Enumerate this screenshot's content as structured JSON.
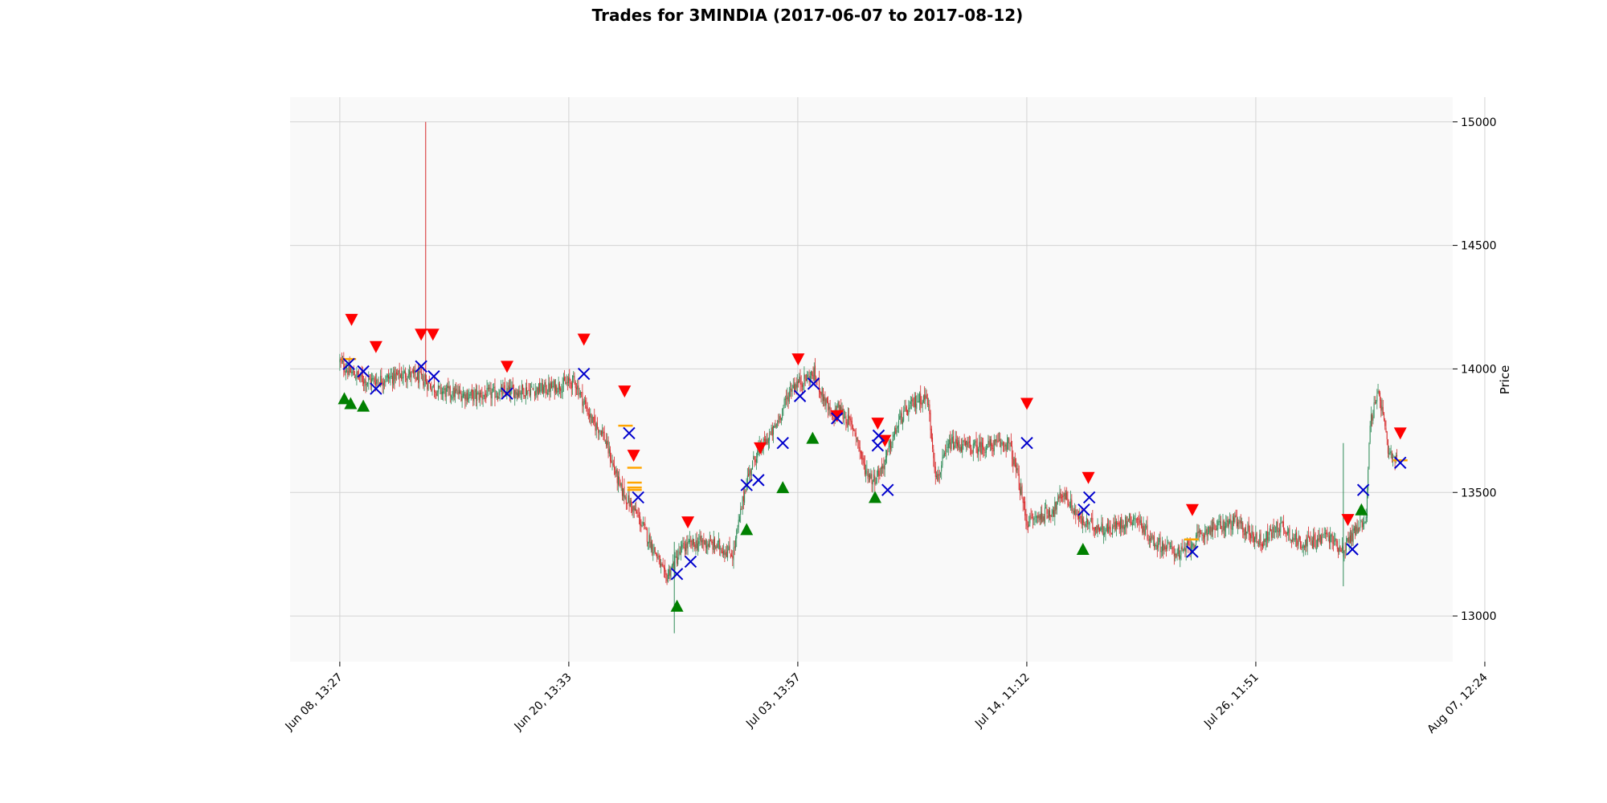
{
  "chart_data": {
    "type": "candlestick",
    "title": "Trades for 3MINDIA (2017-06-07 to 2017-08-12)",
    "xlabel": "",
    "ylabel": "Price",
    "ylim": [
      12815,
      15100
    ],
    "y_ticks": [
      13000,
      13500,
      14000,
      14500,
      15000
    ],
    "x_ticks": [
      "Jun 08, 13:27",
      "Jun 20, 13:33",
      "Jul 03, 13:57",
      "Jul 14, 11:12",
      "Jul 26, 11:51",
      "Aug 07, 12:24"
    ],
    "grid": true,
    "colors": {
      "up": "#2e8b57",
      "down": "#d62728",
      "buy": "#008000",
      "sell": "#ff0000",
      "exit": "#0000cd",
      "level": "#ffa500",
      "grid": "#d3d3d3",
      "panel": "#f9f9f9"
    },
    "price_path": [
      [
        0.0,
        14030
      ],
      [
        1.0,
        13990
      ],
      [
        3.0,
        13950
      ],
      [
        5.0,
        13960
      ],
      [
        7.5,
        13980
      ],
      [
        9.0,
        13960
      ],
      [
        11.0,
        13910
      ],
      [
        15.0,
        13890
      ],
      [
        19.0,
        13910
      ],
      [
        23.0,
        13920
      ],
      [
        26.0,
        13950
      ],
      [
        28.0,
        13780
      ],
      [
        29.0,
        13750
      ],
      [
        31.0,
        13520
      ],
      [
        33.0,
        13400
      ],
      [
        35.0,
        13250
      ],
      [
        36.0,
        13150
      ],
      [
        38.0,
        13280
      ],
      [
        40.0,
        13300
      ],
      [
        42.0,
        13280
      ],
      [
        43.5,
        13250
      ],
      [
        45.0,
        13550
      ],
      [
        46.0,
        13650
      ],
      [
        48.0,
        13750
      ],
      [
        50.0,
        13930
      ],
      [
        52.5,
        13980
      ],
      [
        54.5,
        13790
      ],
      [
        55.0,
        13850
      ],
      [
        57.0,
        13750
      ],
      [
        58.0,
        13600
      ],
      [
        59.0,
        13550
      ],
      [
        60.0,
        13600
      ],
      [
        62.0,
        13800
      ],
      [
        64.0,
        13880
      ],
      [
        65.0,
        13880
      ],
      [
        66.0,
        13550
      ],
      [
        67.5,
        13700
      ],
      [
        70.0,
        13680
      ],
      [
        74.0,
        13700
      ],
      [
        75.0,
        13560
      ],
      [
        76.0,
        13380
      ],
      [
        79.0,
        13430
      ],
      [
        80.0,
        13500
      ],
      [
        82.0,
        13380
      ],
      [
        85.0,
        13350
      ],
      [
        88.0,
        13400
      ],
      [
        90.0,
        13300
      ],
      [
        92.0,
        13270
      ],
      [
        93.0,
        13250
      ],
      [
        96.0,
        13350
      ],
      [
        99.0,
        13380
      ],
      [
        102.0,
        13300
      ],
      [
        104.0,
        13370
      ],
      [
        106.0,
        13300
      ],
      [
        108.0,
        13300
      ],
      [
        109.0,
        13330
      ],
      [
        111.0,
        13270
      ],
      [
        112.0,
        13330
      ],
      [
        113.5,
        13400
      ],
      [
        114.0,
        13800
      ],
      [
        115.0,
        13900
      ],
      [
        116.0,
        13650
      ],
      [
        117.0,
        13620
      ]
    ],
    "spikes": [
      {
        "x": 9.5,
        "high": 15000,
        "low": 13950
      },
      {
        "x": 37.0,
        "high": 13300,
        "low": 12930
      },
      {
        "x": 111.0,
        "high": 13700,
        "low": 13120
      }
    ],
    "trade_markers": {
      "buy": [
        [
          0.5,
          13880
        ],
        [
          1.2,
          13860
        ],
        [
          2.6,
          13850
        ],
        [
          37.3,
          13040
        ],
        [
          45.0,
          13350
        ],
        [
          49.0,
          13520
        ],
        [
          52.3,
          13720
        ],
        [
          59.2,
          13480
        ],
        [
          82.2,
          13270
        ],
        [
          113.0,
          13430
        ]
      ],
      "sell": [
        [
          1.3,
          14200
        ],
        [
          4.0,
          14090
        ],
        [
          9.0,
          14140
        ],
        [
          10.3,
          14140
        ],
        [
          18.5,
          14010
        ],
        [
          27.0,
          14120
        ],
        [
          31.5,
          13910
        ],
        [
          32.5,
          13650
        ],
        [
          38.5,
          13380
        ],
        [
          46.5,
          13680
        ],
        [
          50.7,
          14040
        ],
        [
          55.0,
          13810
        ],
        [
          59.5,
          13780
        ],
        [
          60.3,
          13710
        ],
        [
          76.0,
          13860
        ],
        [
          82.8,
          13560
        ],
        [
          94.3,
          13430
        ],
        [
          111.5,
          13390
        ],
        [
          117.3,
          13740
        ]
      ],
      "exit": [
        [
          1.0,
          14020
        ],
        [
          2.6,
          13990
        ],
        [
          4.0,
          13920
        ],
        [
          9.0,
          14010
        ],
        [
          10.4,
          13970
        ],
        [
          18.5,
          13900
        ],
        [
          27.0,
          13980
        ],
        [
          32.0,
          13740
        ],
        [
          33.0,
          13480
        ],
        [
          37.3,
          13170
        ],
        [
          38.8,
          13220
        ],
        [
          45.0,
          13530
        ],
        [
          46.3,
          13550
        ],
        [
          49.0,
          13700
        ],
        [
          50.9,
          13890
        ],
        [
          52.4,
          13940
        ],
        [
          55.0,
          13800
        ],
        [
          59.5,
          13690
        ],
        [
          59.6,
          13730
        ],
        [
          60.6,
          13510
        ],
        [
          76.0,
          13700
        ],
        [
          82.3,
          13430
        ],
        [
          82.9,
          13480
        ],
        [
          94.3,
          13260
        ],
        [
          112.0,
          13270
        ],
        [
          113.2,
          13510
        ],
        [
          117.3,
          13620
        ]
      ],
      "level": [
        [
          1.0,
          14040
        ],
        [
          31.6,
          13770
        ],
        [
          32.6,
          13600
        ],
        [
          32.6,
          13540
        ],
        [
          32.6,
          13520
        ],
        [
          32.6,
          13510
        ],
        [
          94.2,
          13310
        ],
        [
          117.3,
          13630
        ]
      ]
    }
  }
}
